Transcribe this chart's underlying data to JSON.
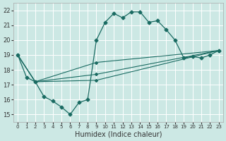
{
  "xlabel": "Humidex (Indice chaleur)",
  "bg_color": "#cce8e4",
  "line_color": "#1a6b62",
  "grid_color": "#ffffff",
  "xlim": [
    -0.5,
    23.5
  ],
  "ylim": [
    14.5,
    22.5
  ],
  "yticks": [
    15,
    16,
    17,
    18,
    19,
    20,
    21,
    22
  ],
  "xticks": [
    0,
    1,
    2,
    3,
    4,
    5,
    6,
    7,
    8,
    9,
    10,
    11,
    12,
    13,
    14,
    15,
    16,
    17,
    18,
    19,
    20,
    21,
    22,
    23
  ],
  "series": [
    {
      "x": [
        0,
        1,
        2,
        3,
        4,
        5,
        6,
        7,
        8,
        9,
        10,
        11,
        12,
        13,
        14,
        15,
        16,
        17,
        18,
        19,
        20,
        21,
        22,
        23
      ],
      "y": [
        19.0,
        17.5,
        17.2,
        16.2,
        15.9,
        15.5,
        15.0,
        15.8,
        16.0,
        20.0,
        21.2,
        21.8,
        21.5,
        21.9,
        21.9,
        21.2,
        21.3,
        20.7,
        20.0,
        18.8,
        18.9,
        18.8,
        19.0,
        19.3
      ]
    },
    {
      "x": [
        0,
        2,
        9,
        23
      ],
      "y": [
        19.0,
        17.2,
        18.5,
        19.3
      ]
    },
    {
      "x": [
        0,
        2,
        9,
        23
      ],
      "y": [
        19.0,
        17.2,
        17.7,
        19.3
      ]
    },
    {
      "x": [
        0,
        2,
        9,
        23
      ],
      "y": [
        19.0,
        17.2,
        17.3,
        19.3
      ]
    }
  ]
}
